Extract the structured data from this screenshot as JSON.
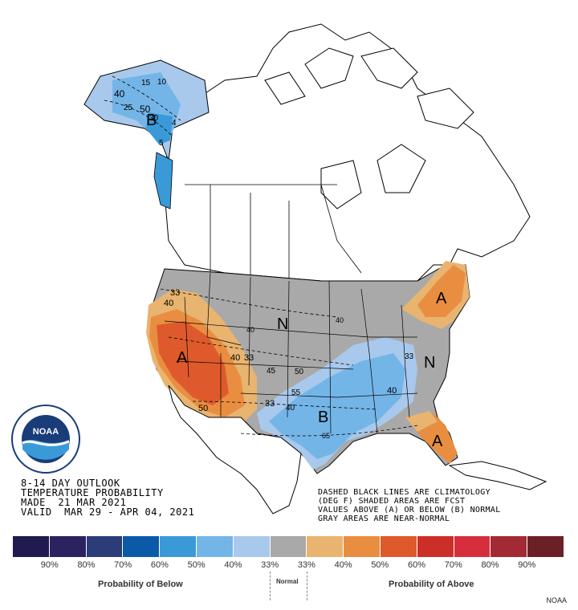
{
  "title": {
    "line1": "8-14 DAY OUTLOOK",
    "line2": "TEMPERATURE PROBABILITY",
    "made": "MADE  21 MAR 2021",
    "valid": "VALID  MAR 29 - APR 04, 2021"
  },
  "notes": [
    "DASHED BLACK LINES ARE CLIMATOLOGY",
    "(DEG F) SHADED AREAS ARE FCST",
    "VALUES ABOVE (A) OR BELOW (B) NORMAL",
    "GRAY AREAS ARE NEAR-NORMAL"
  ],
  "region_labels": {
    "alaska": "B",
    "southwest": "A",
    "plains": "N",
    "southeast": "N",
    "gulf": "B",
    "northeast": "A",
    "florida": "A"
  },
  "contour_labels": {
    "ak_a": "15",
    "ak_b": "10",
    "ak_c": "40",
    "ak_d": "25",
    "ak_e": "50",
    "ak_f": "30",
    "ak_g": "4",
    "ak_h": "5",
    "w_a": "33",
    "w_b": "40",
    "w_c": "40",
    "w_d": "33",
    "w_e": "50",
    "w_f": "33",
    "w_g": "40",
    "w_h": "45",
    "w_i": "50",
    "w_j": "55",
    "w_k": "40",
    "w_l": "65",
    "w_m": "40",
    "w_n": "33",
    "w_o": "40"
  },
  "legend": {
    "colors": [
      "#1f1a4f",
      "#2a235f",
      "#2c3c78",
      "#0a5aa8",
      "#3a9ad8",
      "#74b5e8",
      "#a8c9ec",
      "#a9a9a9",
      "#e8b470",
      "#e98e40",
      "#de5a2c",
      "#cc2f27",
      "#d62e3c",
      "#a32a34",
      "#6b2027"
    ],
    "ticks": [
      "90%",
      "80%",
      "70%",
      "60%",
      "50%",
      "40%",
      "33%",
      "33%",
      "40%",
      "50%",
      "60%",
      "70%",
      "80%",
      "90%"
    ],
    "below_label": "Probability of Below",
    "normal_label": "Normal",
    "above_label": "Probability of Above"
  },
  "logo_text": "NOAA",
  "credit": "NOAA"
}
